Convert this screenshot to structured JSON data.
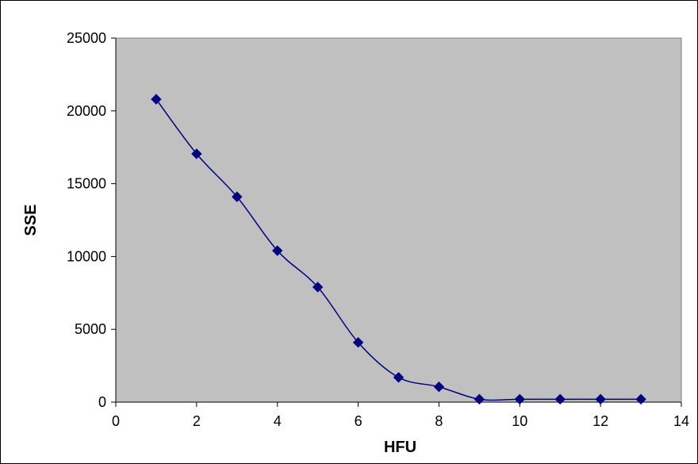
{
  "chart_data": {
    "type": "line",
    "title": "",
    "xlabel": "HFU",
    "ylabel": "SSE",
    "xlim": [
      0,
      14
    ],
    "ylim": [
      0,
      25000
    ],
    "x_ticks": [
      "0",
      "2",
      "4",
      "6",
      "8",
      "10",
      "12",
      "14"
    ],
    "y_ticks": [
      "0",
      "5000",
      "10000",
      "15000",
      "20000",
      "25000"
    ],
    "grid": false,
    "legend": "none",
    "plot_background": "#C0C0C0",
    "series": [
      {
        "color": "#000080",
        "marker": "diamond",
        "smoothed": true,
        "x": [
          1,
          2,
          3,
          4,
          5,
          6,
          7,
          8,
          9,
          10,
          11,
          12,
          13
        ],
        "y": [
          20800,
          17050,
          14100,
          10400,
          7900,
          4100,
          1700,
          1050,
          200,
          200,
          200,
          200,
          200
        ]
      }
    ]
  }
}
